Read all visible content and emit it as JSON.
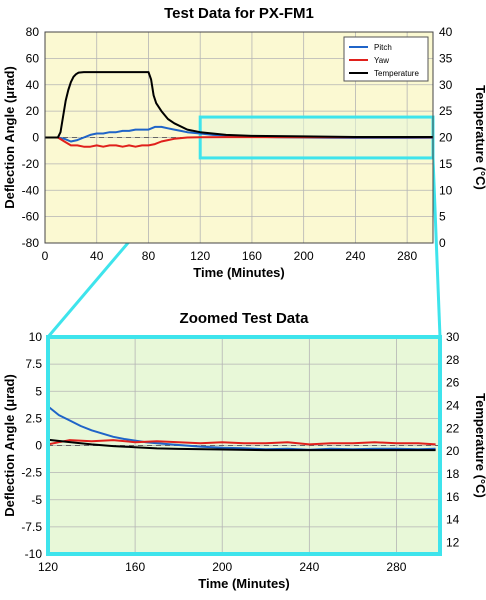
{
  "colors": {
    "pitch": "#1f64c8",
    "yaw": "#e0201c",
    "temperature": "#000000",
    "plot_bg_top": "#fbf9d2",
    "plot_bg_zoom": "#e8f8d8",
    "highlight": "#3ee4ec",
    "gridline": "#b4b4b4"
  },
  "chart_data": [
    {
      "type": "line",
      "title": "Test Data for PX-FM1",
      "xlabel": "Time (Minutes)",
      "ylabel": "Deflection Angle (μrad)",
      "y2label": "Temperature (°C)",
      "xlim": [
        0,
        300
      ],
      "ylim": [
        -80,
        80
      ],
      "y2lim": [
        0,
        40
      ],
      "xticks": [
        "0",
        "40",
        "80",
        "120",
        "160",
        "200",
        "240",
        "280"
      ],
      "yticks": [
        "80",
        "60",
        "40",
        "20",
        "0",
        "-20",
        "-40",
        "-60",
        "-80"
      ],
      "y2ticks": [
        "40",
        "35",
        "30",
        "25",
        "20",
        "15",
        "10",
        "5",
        "0"
      ],
      "grid": true,
      "legend_position": "top-right",
      "highlight_region": {
        "x": [
          120,
          300
        ],
        "y": [
          -15.5,
          15.5
        ]
      },
      "series": [
        {
          "name": "Pitch",
          "axis": "left",
          "x": [
            0,
            10,
            15,
            20,
            25,
            30,
            35,
            40,
            45,
            50,
            55,
            60,
            65,
            70,
            75,
            80,
            85,
            90,
            95,
            100,
            105,
            110,
            115,
            120,
            130,
            140,
            150,
            160,
            180,
            200,
            220,
            240,
            260,
            280,
            300
          ],
          "y": [
            0,
            0,
            -1,
            -3,
            -2,
            0,
            2,
            3,
            3,
            4,
            4,
            5,
            5,
            6,
            6,
            6,
            8,
            8,
            7,
            6,
            5,
            4,
            3.5,
            3,
            2,
            1.5,
            1,
            0.6,
            0.2,
            0,
            -0.2,
            -0.3,
            -0.3,
            -0.3,
            -0.2
          ]
        },
        {
          "name": "Yaw",
          "axis": "left",
          "x": [
            0,
            10,
            15,
            20,
            25,
            30,
            35,
            40,
            45,
            50,
            55,
            60,
            65,
            70,
            75,
            80,
            85,
            90,
            95,
            100,
            110,
            120,
            140,
            160,
            200,
            240,
            280,
            300
          ],
          "y": [
            0,
            0,
            -3,
            -6,
            -6,
            -7,
            -7,
            -6,
            -7,
            -6,
            -6,
            -7,
            -6,
            -7,
            -6,
            -6,
            -5,
            -3,
            -2,
            -1,
            0,
            0.2,
            0.3,
            0.3,
            0.2,
            0.2,
            0.2,
            0.2
          ]
        },
        {
          "name": "Temperature",
          "axis": "right",
          "x": [
            0,
            10,
            12,
            14,
            16,
            18,
            20,
            22,
            24,
            26,
            30,
            40,
            50,
            60,
            70,
            80,
            82,
            84,
            86,
            90,
            95,
            100,
            110,
            120,
            140,
            160,
            200,
            240,
            300
          ],
          "y": [
            20,
            20,
            21,
            24,
            27,
            29,
            30.5,
            31.5,
            32,
            32.3,
            32.4,
            32.4,
            32.4,
            32.4,
            32.4,
            32.4,
            31,
            28,
            26.5,
            25,
            23.5,
            22.7,
            21.5,
            21,
            20.5,
            20.3,
            20.2,
            20.1,
            20.1
          ]
        }
      ]
    },
    {
      "type": "line",
      "title": "Zoomed Test Data",
      "xlabel": "Time (Minutes)",
      "ylabel": "Deflection Angle (μrad)",
      "y2label": "Temperature (°C)",
      "xlim": [
        120,
        300
      ],
      "ylim": [
        -10,
        10
      ],
      "y2lim": [
        11,
        30
      ],
      "xticks": [
        "120",
        "160",
        "200",
        "240",
        "280"
      ],
      "yticks": [
        "10",
        "7.5",
        "5",
        "2.5",
        "0",
        "-2.5",
        "-5",
        "-7.5",
        "-10"
      ],
      "y2ticks": [
        "30",
        "28",
        "26",
        "24",
        "22",
        "20",
        "18",
        "16",
        "14",
        "12"
      ],
      "grid": true,
      "series": [
        {
          "name": "Pitch",
          "axis": "left",
          "x": [
            120,
            125,
            130,
            135,
            140,
            145,
            150,
            155,
            160,
            165,
            170,
            180,
            190,
            200,
            210,
            220,
            230,
            240,
            250,
            260,
            270,
            280,
            290,
            298
          ],
          "y": [
            3.6,
            2.8,
            2.3,
            1.8,
            1.4,
            1.1,
            0.8,
            0.6,
            0.45,
            0.3,
            0.2,
            0.05,
            -0.1,
            -0.2,
            -0.25,
            -0.35,
            -0.3,
            -0.4,
            -0.3,
            -0.35,
            -0.3,
            -0.3,
            -0.35,
            -0.3
          ]
        },
        {
          "name": "Yaw",
          "axis": "left",
          "x": [
            120,
            125,
            130,
            140,
            150,
            160,
            170,
            180,
            190,
            200,
            210,
            220,
            230,
            240,
            250,
            260,
            270,
            280,
            290,
            298
          ],
          "y": [
            0.1,
            0.3,
            0.5,
            0.4,
            0.5,
            0.3,
            0.4,
            0.3,
            0.2,
            0.3,
            0.2,
            0.2,
            0.3,
            0.1,
            0.2,
            0.2,
            0.3,
            0.2,
            0.2,
            0.1
          ]
        },
        {
          "name": "Temperature",
          "axis": "right",
          "x": [
            120,
            130,
            140,
            150,
            160,
            170,
            180,
            200,
            220,
            240,
            260,
            280,
            298
          ],
          "y": [
            21,
            20.8,
            20.6,
            20.45,
            20.35,
            20.25,
            20.2,
            20.15,
            20.1,
            20.1,
            20.1,
            20.1,
            20.1
          ]
        }
      ]
    }
  ]
}
